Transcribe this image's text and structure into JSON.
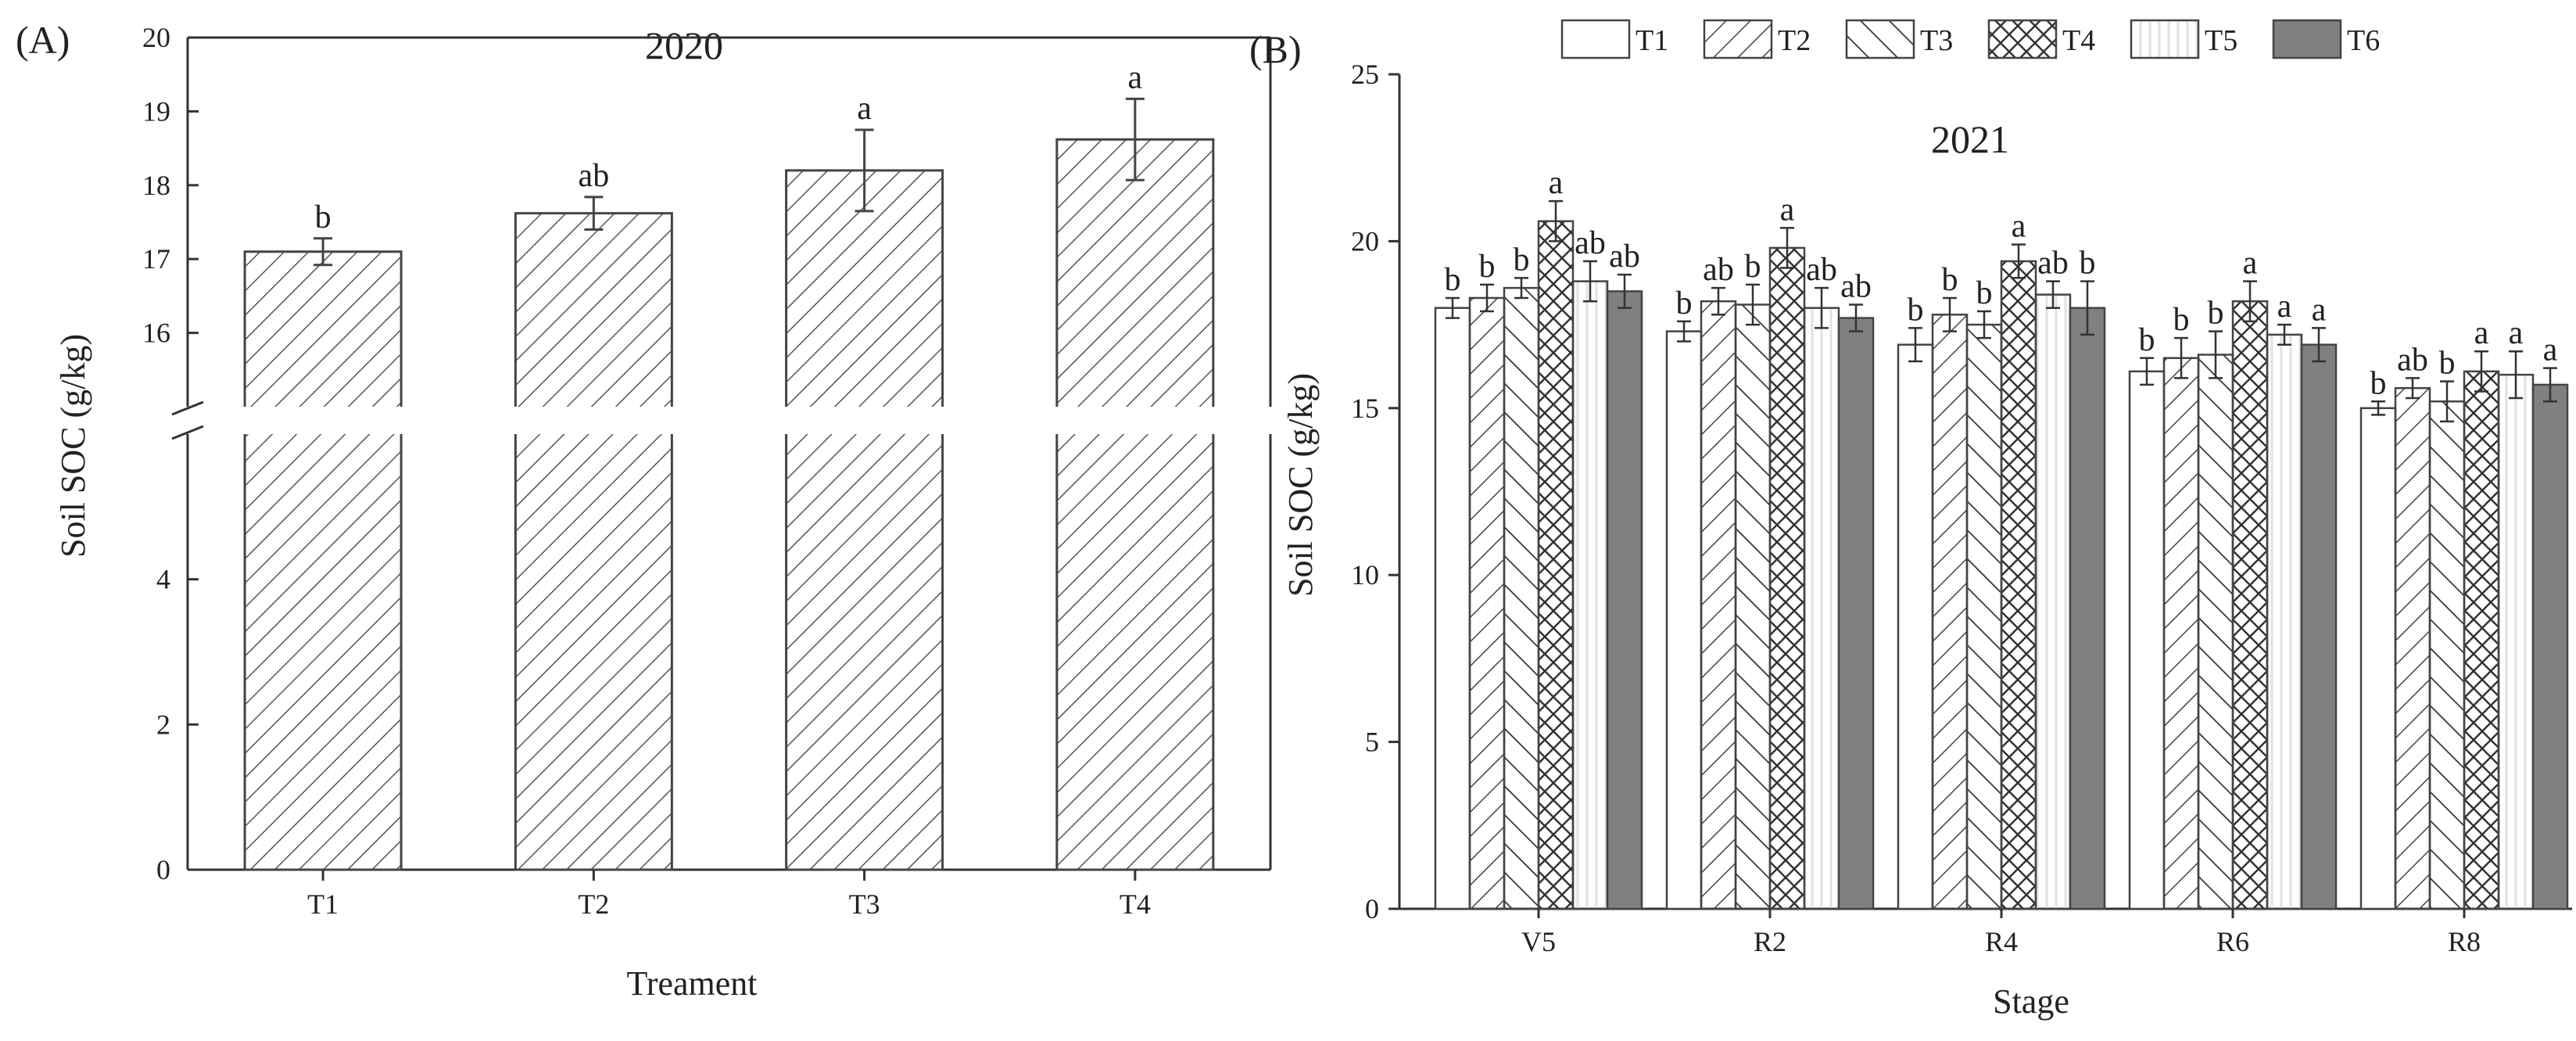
{
  "chart_data": [
    {
      "panel_label": "(A)",
      "type": "bar",
      "title": "2020",
      "xlabel": "Treament",
      "ylabel": "Soil SOC (g/kg)",
      "categories": [
        "T1",
        "T2",
        "T3",
        "T4"
      ],
      "values": [
        17.1,
        17.62,
        18.2,
        18.62
      ],
      "errors": [
        0.18,
        0.22,
        0.55,
        0.55
      ],
      "significance": [
        "b",
        "ab",
        "a",
        "a"
      ],
      "y_axis_break": true,
      "ylim_lower": [
        0,
        6
      ],
      "ylim_upper": [
        15,
        20
      ],
      "yticks_lower": [
        "0",
        "2",
        "4"
      ],
      "yticks_upper": [
        "16",
        "17",
        "18",
        "19",
        "20"
      ],
      "bar_fill": "diagonal-hatch",
      "grid": false
    },
    {
      "panel_label": "(B)",
      "type": "bar",
      "title": "2021",
      "xlabel": "Stage",
      "ylabel": "Soil SOC (g/kg)",
      "categories": [
        "V5",
        "R2",
        "R4",
        "R6",
        "R8"
      ],
      "ylim": [
        0,
        25
      ],
      "yticks": [
        "0",
        "5",
        "10",
        "15",
        "20",
        "25"
      ],
      "legend_position": "top",
      "grid": false,
      "series": [
        {
          "name": "T1",
          "pattern": "plain",
          "values": [
            18.0,
            17.3,
            16.9,
            16.1,
            15.0
          ],
          "errors": [
            0.3,
            0.3,
            0.5,
            0.4,
            0.2
          ],
          "significance": [
            "b",
            "b",
            "b",
            "b",
            "b"
          ]
        },
        {
          "name": "T2",
          "pattern": "diagonal-up",
          "values": [
            18.3,
            18.2,
            17.8,
            16.5,
            15.6
          ],
          "errors": [
            0.4,
            0.4,
            0.5,
            0.6,
            0.3
          ],
          "significance": [
            "b",
            "ab",
            "b",
            "b",
            "ab"
          ]
        },
        {
          "name": "T3",
          "pattern": "diagonal-down",
          "values": [
            18.6,
            18.1,
            17.5,
            16.6,
            15.2
          ],
          "errors": [
            0.3,
            0.6,
            0.4,
            0.7,
            0.6
          ],
          "significance": [
            "b",
            "b",
            "b",
            "b",
            "b"
          ]
        },
        {
          "name": "T4",
          "pattern": "crosshatch",
          "values": [
            20.6,
            19.8,
            19.4,
            18.2,
            16.1
          ],
          "errors": [
            0.6,
            0.6,
            0.5,
            0.6,
            0.6
          ],
          "significance": [
            "a",
            "a",
            "a",
            "a",
            "a"
          ]
        },
        {
          "name": "T5",
          "pattern": "vertical-light",
          "values": [
            18.8,
            18.0,
            18.4,
            17.2,
            16.0
          ],
          "errors": [
            0.6,
            0.6,
            0.4,
            0.3,
            0.7
          ],
          "significance": [
            "ab",
            "ab",
            "ab",
            "a",
            "a"
          ]
        },
        {
          "name": "T6",
          "pattern": "solid-gray",
          "values": [
            18.5,
            17.7,
            18.0,
            16.9,
            15.7
          ],
          "errors": [
            0.5,
            0.4,
            0.8,
            0.5,
            0.5
          ],
          "significance": [
            "ab",
            "ab",
            "b",
            "a",
            "a"
          ]
        }
      ]
    }
  ]
}
